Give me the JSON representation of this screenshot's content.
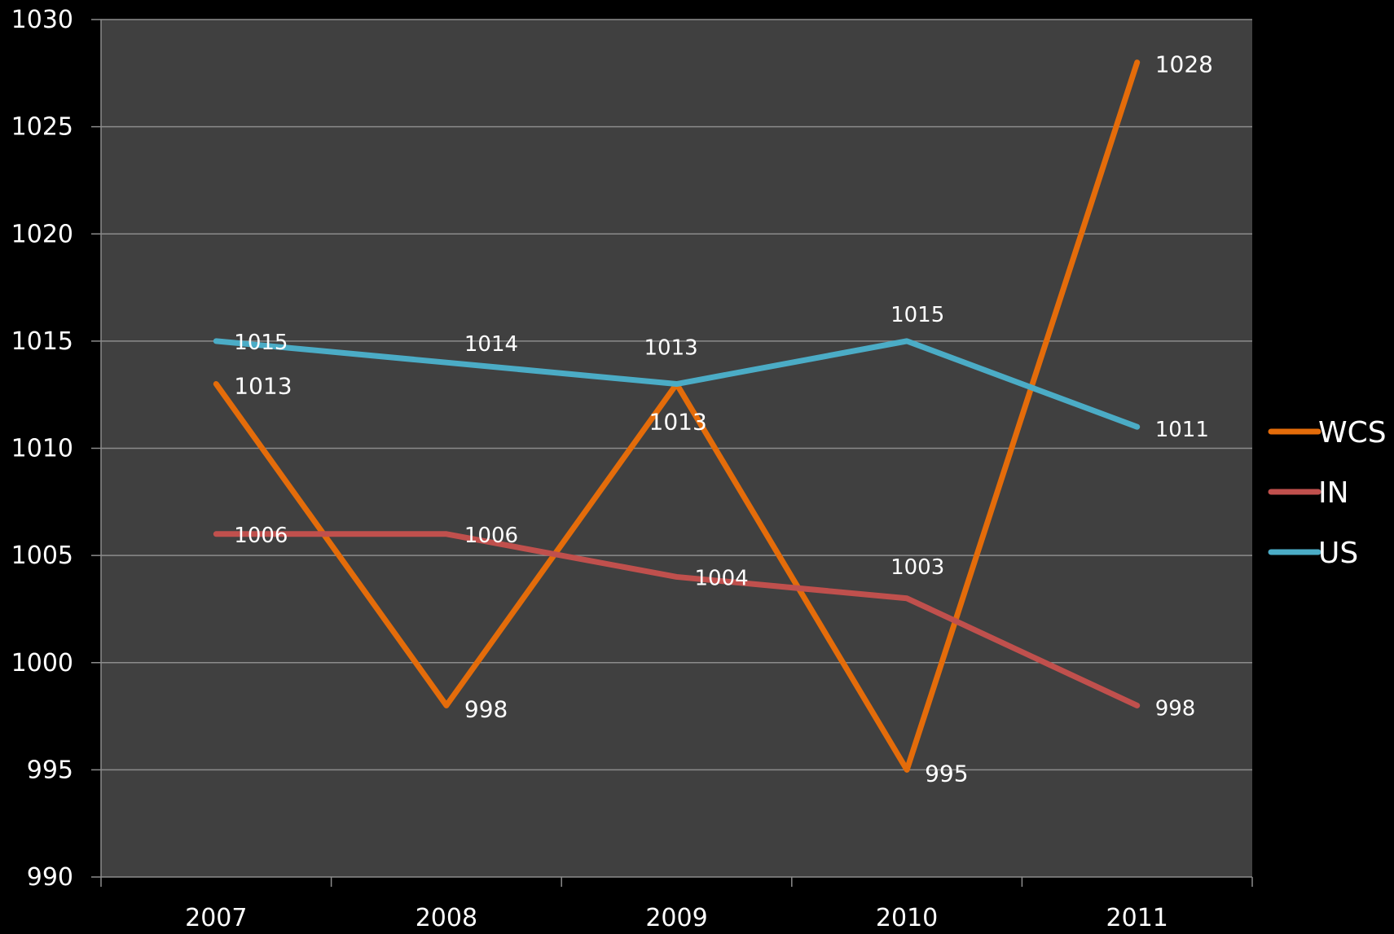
{
  "chart_data": {
    "type": "line",
    "categories": [
      "2007",
      "2008",
      "2009",
      "2010",
      "2011"
    ],
    "ylim": [
      990,
      1030
    ],
    "yticks": [
      "990",
      "995",
      "1000",
      "1005",
      "1010",
      "1015",
      "1020",
      "1025",
      "1030"
    ],
    "grid": true,
    "legend_position": "right",
    "background_color": "#404040",
    "page_color": "#000000",
    "series": [
      {
        "name": "WCS",
        "color": "#E46C0A",
        "values": [
          1013,
          998,
          1013,
          995,
          1028
        ],
        "labels": [
          "1013",
          "998",
          "1013",
          "995",
          "1028"
        ]
      },
      {
        "name": "IN",
        "color": "#C0504D",
        "values": [
          1006,
          1006,
          1004,
          1003,
          998
        ],
        "labels": [
          "1006",
          "1006",
          "1004",
          "1003",
          "998"
        ]
      },
      {
        "name": "US",
        "color": "#4BACC6",
        "values": [
          1015,
          1014,
          1013,
          1015,
          1011
        ],
        "labels": [
          "1015",
          "1014",
          "1013",
          "1015",
          "1011"
        ]
      }
    ]
  }
}
